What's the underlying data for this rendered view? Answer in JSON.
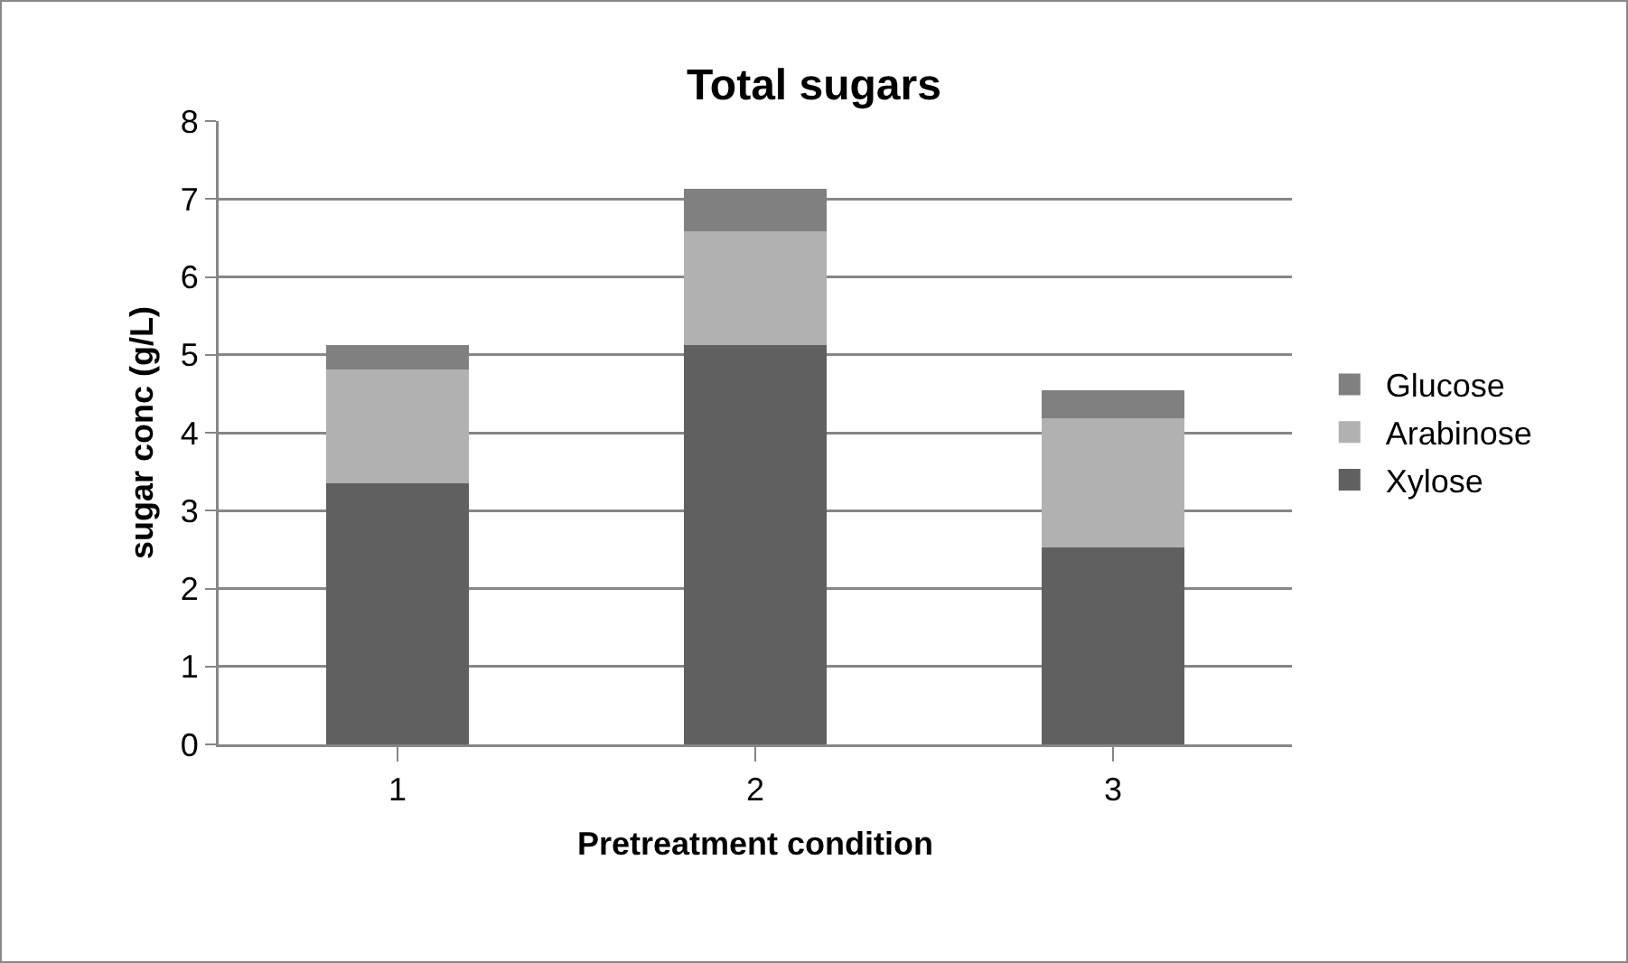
{
  "chart_data": {
    "type": "bar",
    "title": "Total sugars",
    "xlabel": "Pretreatment condition",
    "ylabel": "sugar conc (g/L)",
    "categories": [
      "1",
      "2",
      "3"
    ],
    "series": [
      {
        "name": "Xylose",
        "color": "#606060",
        "values": [
          3.35,
          5.12,
          2.53
        ]
      },
      {
        "name": "Arabinose",
        "color": "#b1b1b1",
        "values": [
          1.46,
          1.46,
          1.65
        ]
      },
      {
        "name": "Glucose",
        "color": "#808080",
        "values": [
          0.32,
          0.55,
          0.36
        ]
      }
    ],
    "stacked": true,
    "ylim": [
      0,
      8
    ],
    "yticks": [
      0,
      1,
      2,
      3,
      4,
      5,
      6,
      7,
      8
    ],
    "grid": "y",
    "legend": "right"
  }
}
